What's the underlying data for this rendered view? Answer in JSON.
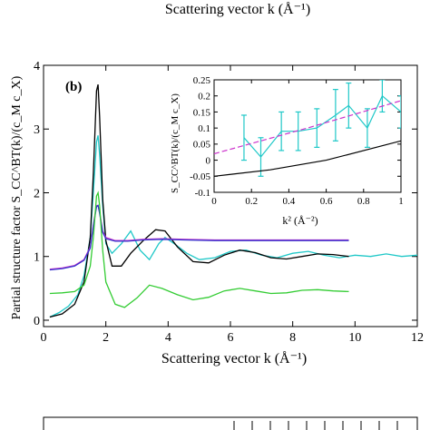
{
  "top_cut_label": "Scattering vector k (Å⁻¹)",
  "chart_data": [
    {
      "type": "line",
      "panel_label": "(b)",
      "xlabel": "Scattering vector k (Å⁻¹)",
      "ylabel": "Partial structure factor S_CC^BT(k)/(c_M c_X)",
      "xlim": [
        0,
        12
      ],
      "ylim": [
        -0.1,
        4
      ],
      "xticks": [
        0,
        2,
        4,
        6,
        8,
        10,
        12
      ],
      "yticks": [
        0,
        1,
        2,
        3,
        4
      ],
      "grid": false,
      "legend": "none",
      "series": [
        {
          "color": "#1fc8c8",
          "x": [
            0.2,
            0.5,
            0.8,
            1.1,
            1.3,
            1.5,
            1.6,
            1.7,
            1.75,
            1.8,
            1.9,
            2.0,
            2.2,
            2.5,
            2.8,
            3.1,
            3.4,
            3.7,
            3.9,
            4.2,
            4.6,
            5.0,
            5.5,
            6.0,
            6.5,
            7.0,
            7.5,
            8.0,
            8.5,
            9.0,
            9.5,
            10.0,
            10.5,
            11.0,
            11.5,
            12.0
          ],
          "y": [
            0.05,
            0.12,
            0.22,
            0.4,
            0.7,
            1.3,
            2.0,
            2.8,
            2.9,
            2.6,
            1.8,
            1.2,
            1.05,
            1.2,
            1.4,
            1.1,
            0.95,
            1.2,
            1.3,
            1.2,
            1.05,
            0.95,
            0.98,
            1.08,
            1.1,
            1.02,
            0.98,
            1.05,
            1.08,
            1.02,
            0.98,
            1.02,
            1.0,
            1.04,
            1.0,
            1.02
          ]
        },
        {
          "color": "#000000",
          "x": [
            0.2,
            0.6,
            1.0,
            1.3,
            1.5,
            1.6,
            1.7,
            1.75,
            1.8,
            1.9,
            2.0,
            2.2,
            2.5,
            2.8,
            3.2,
            3.6,
            3.9,
            4.3,
            4.8,
            5.3,
            5.8,
            6.3,
            6.8,
            7.3,
            7.8,
            8.3,
            8.8,
            9.3,
            9.8
          ],
          "y": [
            0.05,
            0.1,
            0.25,
            0.6,
            1.3,
            2.3,
            3.6,
            3.7,
            3.2,
            1.9,
            1.25,
            0.85,
            0.85,
            1.05,
            1.25,
            1.42,
            1.4,
            1.15,
            0.92,
            0.9,
            1.02,
            1.1,
            1.06,
            0.98,
            0.96,
            1.0,
            1.04,
            1.03,
            1.0
          ]
        },
        {
          "color": "#cc33cc",
          "x": [
            0.2,
            0.6,
            1.0,
            1.3,
            1.5,
            1.6,
            1.7,
            1.75,
            1.8,
            1.9,
            2.0,
            2.3,
            2.7,
            3.2,
            3.8,
            4.5,
            5.5,
            6.5,
            7.5,
            8.5,
            9.8
          ],
          "y": [
            0.8,
            0.82,
            0.86,
            0.95,
            1.15,
            1.5,
            1.8,
            1.8,
            1.7,
            1.4,
            1.3,
            1.25,
            1.25,
            1.27,
            1.28,
            1.27,
            1.26,
            1.26,
            1.26,
            1.26,
            1.26
          ]
        },
        {
          "color": "#3333cc",
          "x": [
            0.2,
            0.6,
            1.0,
            1.3,
            1.5,
            1.6,
            1.7,
            1.75,
            1.8,
            1.9,
            2.0,
            2.3,
            2.7,
            3.2,
            3.8,
            4.5,
            5.5,
            6.5,
            7.5,
            8.5,
            9.8
          ],
          "y": [
            0.79,
            0.81,
            0.85,
            0.94,
            1.13,
            1.48,
            1.78,
            1.8,
            1.68,
            1.38,
            1.28,
            1.24,
            1.24,
            1.26,
            1.27,
            1.26,
            1.25,
            1.25,
            1.25,
            1.25,
            1.25
          ]
        },
        {
          "color": "#33cc33",
          "x": [
            0.2,
            0.6,
            1.0,
            1.3,
            1.5,
            1.6,
            1.7,
            1.75,
            1.8,
            1.9,
            2.0,
            2.3,
            2.6,
            3.0,
            3.4,
            3.8,
            4.3,
            4.8,
            5.3,
            5.8,
            6.3,
            6.8,
            7.3,
            7.8,
            8.3,
            8.8,
            9.3,
            9.8
          ],
          "y": [
            0.42,
            0.43,
            0.45,
            0.55,
            0.85,
            1.3,
            1.95,
            2.0,
            1.8,
            1.1,
            0.6,
            0.25,
            0.2,
            0.35,
            0.55,
            0.5,
            0.4,
            0.32,
            0.36,
            0.46,
            0.5,
            0.46,
            0.42,
            0.43,
            0.47,
            0.48,
            0.46,
            0.45
          ]
        }
      ]
    },
    {
      "type": "line",
      "inset": true,
      "xlabel": "k² (Å⁻²)",
      "ylabel": "S_CC^BT(k)/(c_M c_X)",
      "xlim": [
        0,
        1
      ],
      "ylim": [
        -0.1,
        0.25
      ],
      "xticks": [
        0,
        0.2,
        0.4,
        0.6,
        0.8,
        1
      ],
      "yticks": [
        -0.1,
        -0.05,
        0,
        0.05,
        0.1,
        0.15,
        0.2,
        0.25
      ],
      "ytick_labels": [
        "-0.1",
        "-0.05",
        "0",
        "0.05",
        "0.1",
        "0.15",
        "0.2",
        "0.25"
      ],
      "series": [
        {
          "color": "#1fc8c8",
          "errorbars": true,
          "x": [
            0.16,
            0.25,
            0.36,
            0.45,
            0.55,
            0.65,
            0.72,
            0.82,
            0.9,
            1.0
          ],
          "y": [
            0.07,
            0.01,
            0.09,
            0.09,
            0.1,
            0.14,
            0.17,
            0.1,
            0.2,
            0.15
          ],
          "err": [
            0.07,
            0.06,
            0.06,
            0.06,
            0.06,
            0.08,
            0.07,
            0.06,
            0.05,
            0.05
          ]
        },
        {
          "color": "#cc33cc",
          "style": "dashed",
          "x": [
            0,
            0.5,
            1.0
          ],
          "y": [
            0.02,
            0.1,
            0.185
          ]
        },
        {
          "color": "#000000",
          "x": [
            0,
            0.3,
            0.6,
            1.0
          ],
          "y": [
            -0.05,
            -0.03,
            0.0,
            0.06
          ]
        }
      ]
    }
  ]
}
